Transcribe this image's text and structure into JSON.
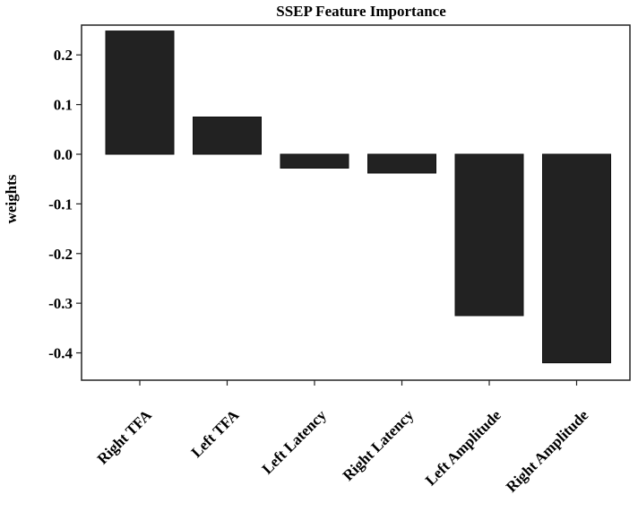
{
  "chart_data": {
    "type": "bar",
    "title": "SSEP Feature Importance",
    "xlabel": "",
    "ylabel": "weights",
    "categories": [
      "Right TFA",
      "Left TFA",
      "Left Latency",
      "Right Latency",
      "Left Amplitude",
      "Right Amplitude"
    ],
    "values": [
      0.248,
      0.075,
      -0.028,
      -0.038,
      -0.325,
      -0.42
    ],
    "ylim": [
      -0.455,
      0.26
    ],
    "yticks": [
      0.2,
      0.1,
      0.0,
      -0.1,
      -0.2,
      -0.3,
      -0.4
    ],
    "ytick_labels": [
      "0.2",
      "0.1",
      "0.0",
      "-0.1",
      "-0.2",
      "-0.3",
      "-0.4"
    ],
    "bar_color": "#222222",
    "grid": false,
    "legend": "none"
  }
}
